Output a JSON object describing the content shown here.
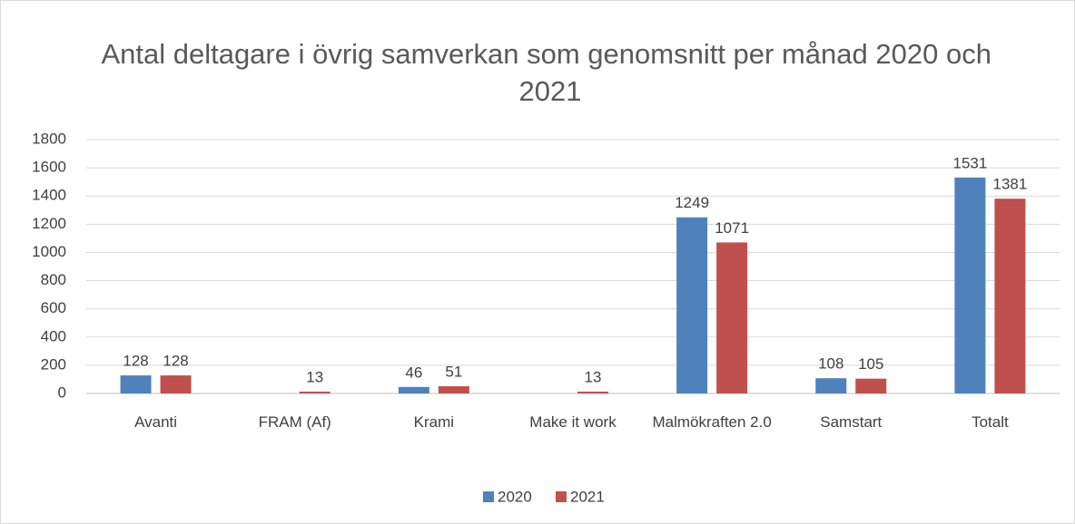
{
  "chart_data": {
    "type": "bar",
    "title": "Antal deltagare i övrig samverkan som genomsnitt per månad 2020 och 2021",
    "categories": [
      "Avanti",
      "FRAM (Af)",
      "Krami",
      "Make it work",
      "Malmökraften 2.0",
      "Samstart",
      "Totalt"
    ],
    "series": [
      {
        "name": "2020",
        "color": "#4f81bd",
        "values": [
          128,
          null,
          46,
          null,
          1249,
          108,
          1531
        ]
      },
      {
        "name": "2021",
        "color": "#c0504d",
        "values": [
          128,
          13,
          51,
          13,
          1071,
          105,
          1381
        ]
      }
    ],
    "ylim": [
      0,
      1800
    ],
    "yticks": [
      0,
      200,
      400,
      600,
      800,
      1000,
      1200,
      1400,
      1600,
      1800
    ],
    "grid": true,
    "legend": "bottom"
  }
}
